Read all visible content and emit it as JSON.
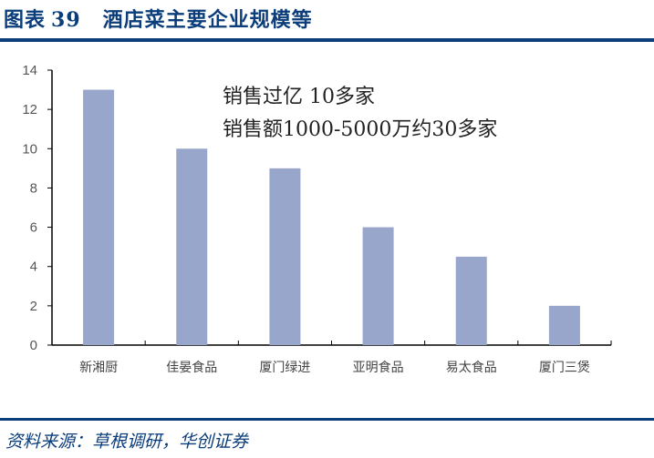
{
  "header": {
    "label": "图表",
    "number": "39",
    "title": "酒店菜主要企业规模等"
  },
  "source": "资料来源：草根调研，华创证券",
  "colors": {
    "bar": "#98a6cb",
    "header": "#0a3d7a"
  },
  "chart_data": {
    "type": "bar",
    "categories": [
      "新湘厨",
      "佳晏食品",
      "厦门绿进",
      "亚明食品",
      "易太食品",
      "厦门三煲"
    ],
    "values": [
      13,
      10,
      9,
      6,
      4.5,
      2
    ],
    "ylim": [
      0,
      14
    ],
    "yticks": [
      0,
      2,
      4,
      6,
      8,
      10,
      12,
      14
    ],
    "grid": false,
    "annotations": [
      "销售过亿 10多家",
      "销售额1000-5000万约30多家"
    ]
  }
}
